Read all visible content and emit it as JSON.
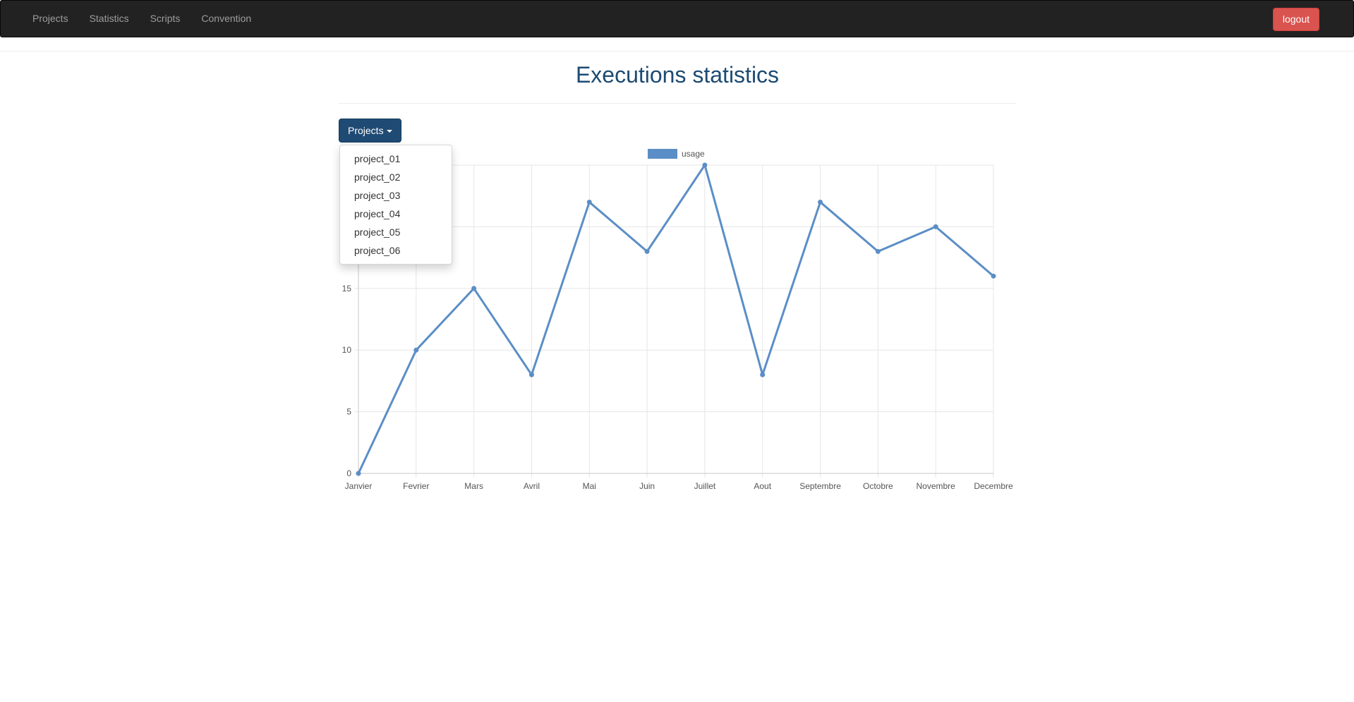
{
  "nav": {
    "items": [
      {
        "label": "Projects",
        "name": "nav-projects"
      },
      {
        "label": "Statistics",
        "name": "nav-statistics"
      },
      {
        "label": "Scripts",
        "name": "nav-scripts"
      },
      {
        "label": "Convention",
        "name": "nav-convention"
      }
    ],
    "logout_label": "logout"
  },
  "page": {
    "title": "Executions statistics"
  },
  "dropdown": {
    "button_label": "Projects",
    "items": [
      "project_01",
      "project_02",
      "project_03",
      "project_04",
      "project_05",
      "project_06"
    ]
  },
  "colors": {
    "navbar": "#222222",
    "nav_text": "#9d9d9d",
    "logout": "#d9534f",
    "title": "#1d4b72",
    "dropdown_button": "#1f4a73",
    "series": "#5b8ec6",
    "grid": "#e6e6e6",
    "axis_text": "#555555"
  },
  "chart_data": {
    "type": "line",
    "categories": [
      "Janvier",
      "Fevrier",
      "Mars",
      "Avril",
      "Mai",
      "Juin",
      "Juillet",
      "Aout",
      "Septembre",
      "Octobre",
      "Novembre",
      "Decembre"
    ],
    "series": [
      {
        "name": "usage",
        "values": [
          0,
          10,
          15,
          8,
          22,
          18,
          25,
          8,
          22,
          18,
          20,
          16
        ]
      }
    ],
    "ylim": [
      0,
      25
    ],
    "yticks": [
      0,
      5,
      10,
      15,
      20,
      25
    ],
    "legend": "top-center",
    "grid": true
  }
}
